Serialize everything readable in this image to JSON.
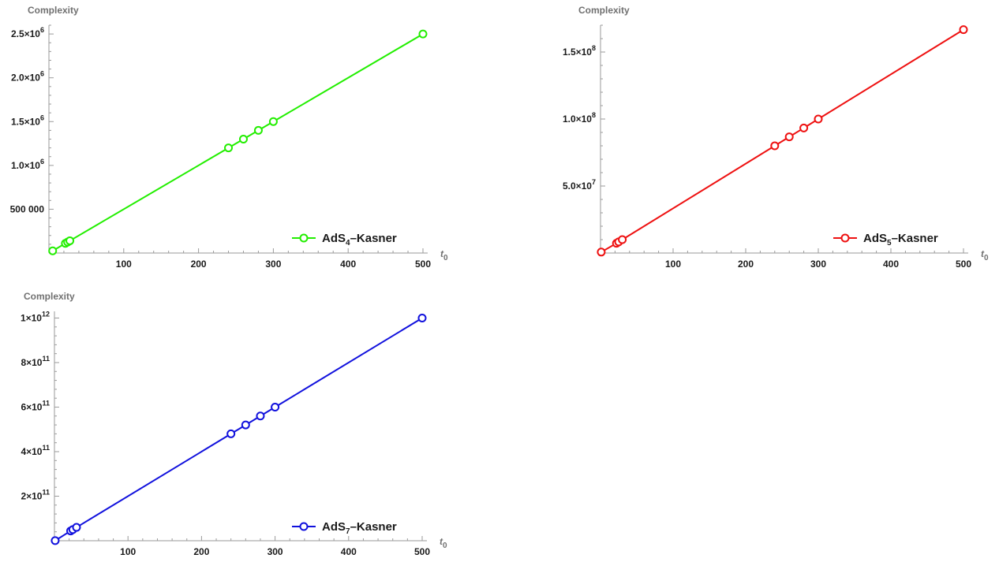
{
  "chart_data": [
    {
      "type": "line",
      "ylabel": "Complexity",
      "xlabel_main": "t",
      "xlabel_sub": "0",
      "xlim": [
        0,
        500
      ],
      "ylim": [
        0,
        2600000
      ],
      "x_ticks": [
        100,
        200,
        300,
        400,
        500
      ],
      "y_ticks": [
        {
          "value": 500000,
          "mantissa": "500 000",
          "exp": ""
        },
        {
          "value": 1000000,
          "mantissa": "1.0×10",
          "exp": "6"
        },
        {
          "value": 1500000,
          "mantissa": "1.5×10",
          "exp": "6"
        },
        {
          "value": 2000000,
          "mantissa": "2.0×10",
          "exp": "6"
        },
        {
          "value": 2500000,
          "mantissa": "2.5×10",
          "exp": "6"
        }
      ],
      "series": [
        {
          "name": "AdS4–Kasner",
          "color": "#22ee00",
          "legend_pre": "AdS",
          "legend_sub": "4",
          "legend_post": "–Kasner",
          "points": [
            [
              5,
              25000
            ],
            [
              22,
              110000
            ],
            [
              25,
              125000
            ],
            [
              28,
              140000
            ],
            [
              240,
              1200000
            ],
            [
              260,
              1300000
            ],
            [
              280,
              1400000
            ],
            [
              300,
              1500000
            ],
            [
              500,
              2500000
            ]
          ]
        }
      ]
    },
    {
      "type": "line",
      "ylabel": "Complexity",
      "xlabel_main": "t",
      "xlabel_sub": "0",
      "xlim": [
        0,
        500
      ],
      "ylim": [
        0,
        170000000
      ],
      "x_ticks": [
        100,
        200,
        300,
        400,
        500
      ],
      "y_ticks": [
        {
          "value": 50000000,
          "mantissa": "5.0×10",
          "exp": "7"
        },
        {
          "value": 100000000,
          "mantissa": "1.0×10",
          "exp": "8"
        },
        {
          "value": 150000000,
          "mantissa": "1.5×10",
          "exp": "8"
        }
      ],
      "series": [
        {
          "name": "AdS5–Kasner",
          "color": "#ee1111",
          "legend_pre": "AdS",
          "legend_sub": "5",
          "legend_post": "–Kasner",
          "points": [
            [
              1,
              700000
            ],
            [
              22,
              7300000
            ],
            [
              25,
              8300000
            ],
            [
              30,
              10000000
            ],
            [
              240,
              80000000
            ],
            [
              260,
              86700000
            ],
            [
              280,
              93300000
            ],
            [
              300,
              100000000
            ],
            [
              500,
              166700000
            ]
          ]
        }
      ]
    },
    {
      "type": "line",
      "ylabel": "Complexity",
      "xlabel_main": "t",
      "xlabel_sub": "0",
      "xlim": [
        0,
        500
      ],
      "ylim": [
        0,
        1030000000000
      ],
      "x_ticks": [
        100,
        200,
        300,
        400,
        500
      ],
      "y_ticks": [
        {
          "value": 200000000000,
          "mantissa": "2×10",
          "exp": "11"
        },
        {
          "value": 400000000000,
          "mantissa": "4×10",
          "exp": "11"
        },
        {
          "value": 600000000000,
          "mantissa": "6×10",
          "exp": "11"
        },
        {
          "value": 800000000000,
          "mantissa": "8×10",
          "exp": "11"
        },
        {
          "value": 1000000000000,
          "mantissa": "1×10",
          "exp": "12"
        }
      ],
      "series": [
        {
          "name": "AdS7–Kasner",
          "color": "#1111dd",
          "legend_pre": "AdS",
          "legend_sub": "7",
          "legend_post": "–Kasner",
          "points": [
            [
              1,
              400000000
            ],
            [
              22,
              44000000000
            ],
            [
              25,
              50000000000
            ],
            [
              30,
              60000000000
            ],
            [
              240,
              480000000000
            ],
            [
              260,
              520000000000
            ],
            [
              280,
              560000000000
            ],
            [
              300,
              600000000000
            ],
            [
              500,
              1000000000000
            ]
          ]
        }
      ]
    }
  ]
}
